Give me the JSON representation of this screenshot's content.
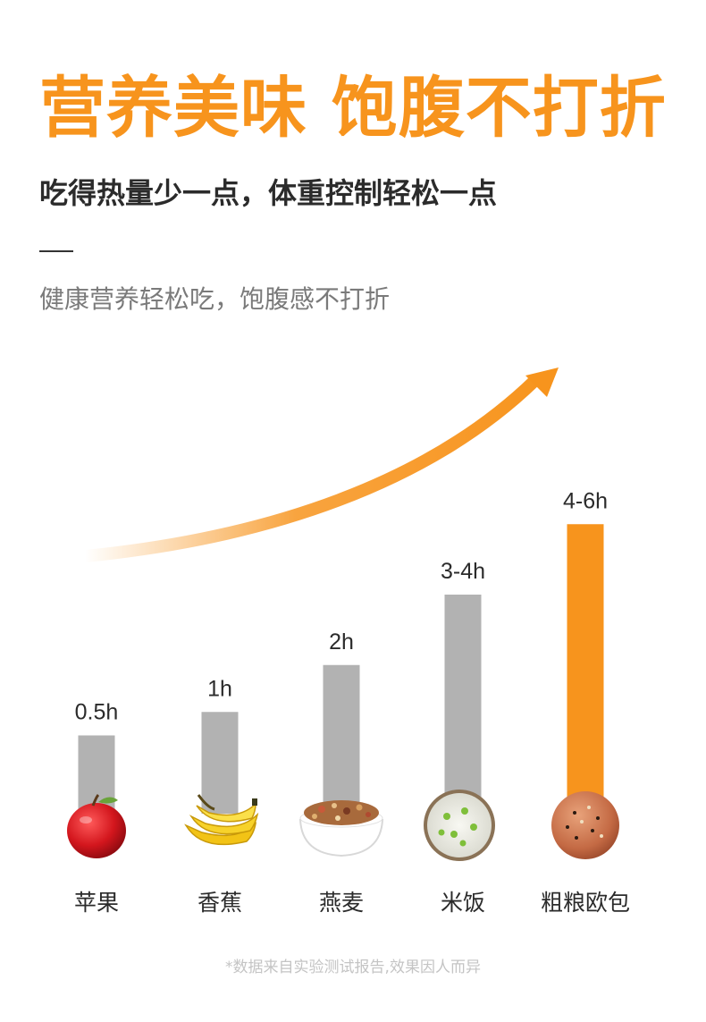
{
  "header": {
    "title": "营养美味 饱腹不打折",
    "subtitle": "吃得热量少一点，体重控制轻松一点",
    "tagline": "健康营养轻松吃，饱腹感不打折"
  },
  "colors": {
    "accent": "#f7941d",
    "bar_default": "#b2b2b2",
    "bar_highlight": "#f7941d"
  },
  "chart_data": {
    "type": "bar",
    "title": "",
    "xlabel": "",
    "ylabel": "",
    "unit": "h",
    "categories": [
      "苹果",
      "香蕉",
      "燕麦",
      "米饭",
      "粗粮欧包"
    ],
    "values": [
      0.5,
      1,
      2,
      3.5,
      5
    ],
    "value_labels": [
      "0.5h",
      "1h",
      "2h",
      "3-4h",
      "4-6h"
    ],
    "highlight_index": 4,
    "icons": [
      "apple-icon",
      "banana-icon",
      "oat-bowl-icon",
      "rice-bowl-icon",
      "bread-roll-icon"
    ],
    "trend_arrow": true,
    "grid": false,
    "legend": "none"
  },
  "footer": {
    "note": "*数据来自实验测试报告,效果因人而异"
  }
}
